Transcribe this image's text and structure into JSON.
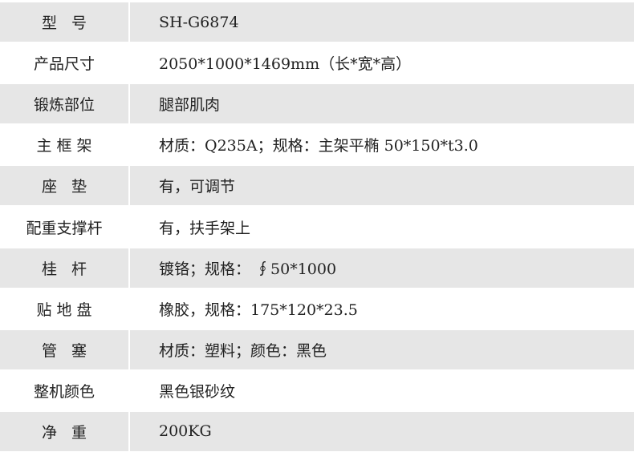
{
  "rows": [
    {
      "label": "型   号",
      "value": "SH-G6874"
    },
    {
      "label": "产品尺寸",
      "value": "2050*1000*1469mm（长*宽*高）"
    },
    {
      "label": "锻炼部位",
      "value": "腿部肌肉"
    },
    {
      "label": "主 框 架",
      "value": "材质：Q235A；规格：主架平椭 50*150*t3.0"
    },
    {
      "label": "座   垫",
      "value": "有，可调节"
    },
    {
      "label": "配重支撑杆",
      "value": "有，扶手架上"
    },
    {
      "label": "桂   杆",
      "value": "镀铬；规格：  ∮50*1000"
    },
    {
      "label": "贴 地 盘",
      "value": "橡胶，规格：175*120*23.5"
    },
    {
      "label": "管   塞",
      "value": "材质：塑料；颜色：黑色"
    },
    {
      "label": "整机颜色",
      "value": "黑色银砂纹"
    },
    {
      "label": "净   重",
      "value": "200KG"
    }
  ],
  "colors": {
    "stripe": "#e6e6e6",
    "text": "#222222"
  }
}
